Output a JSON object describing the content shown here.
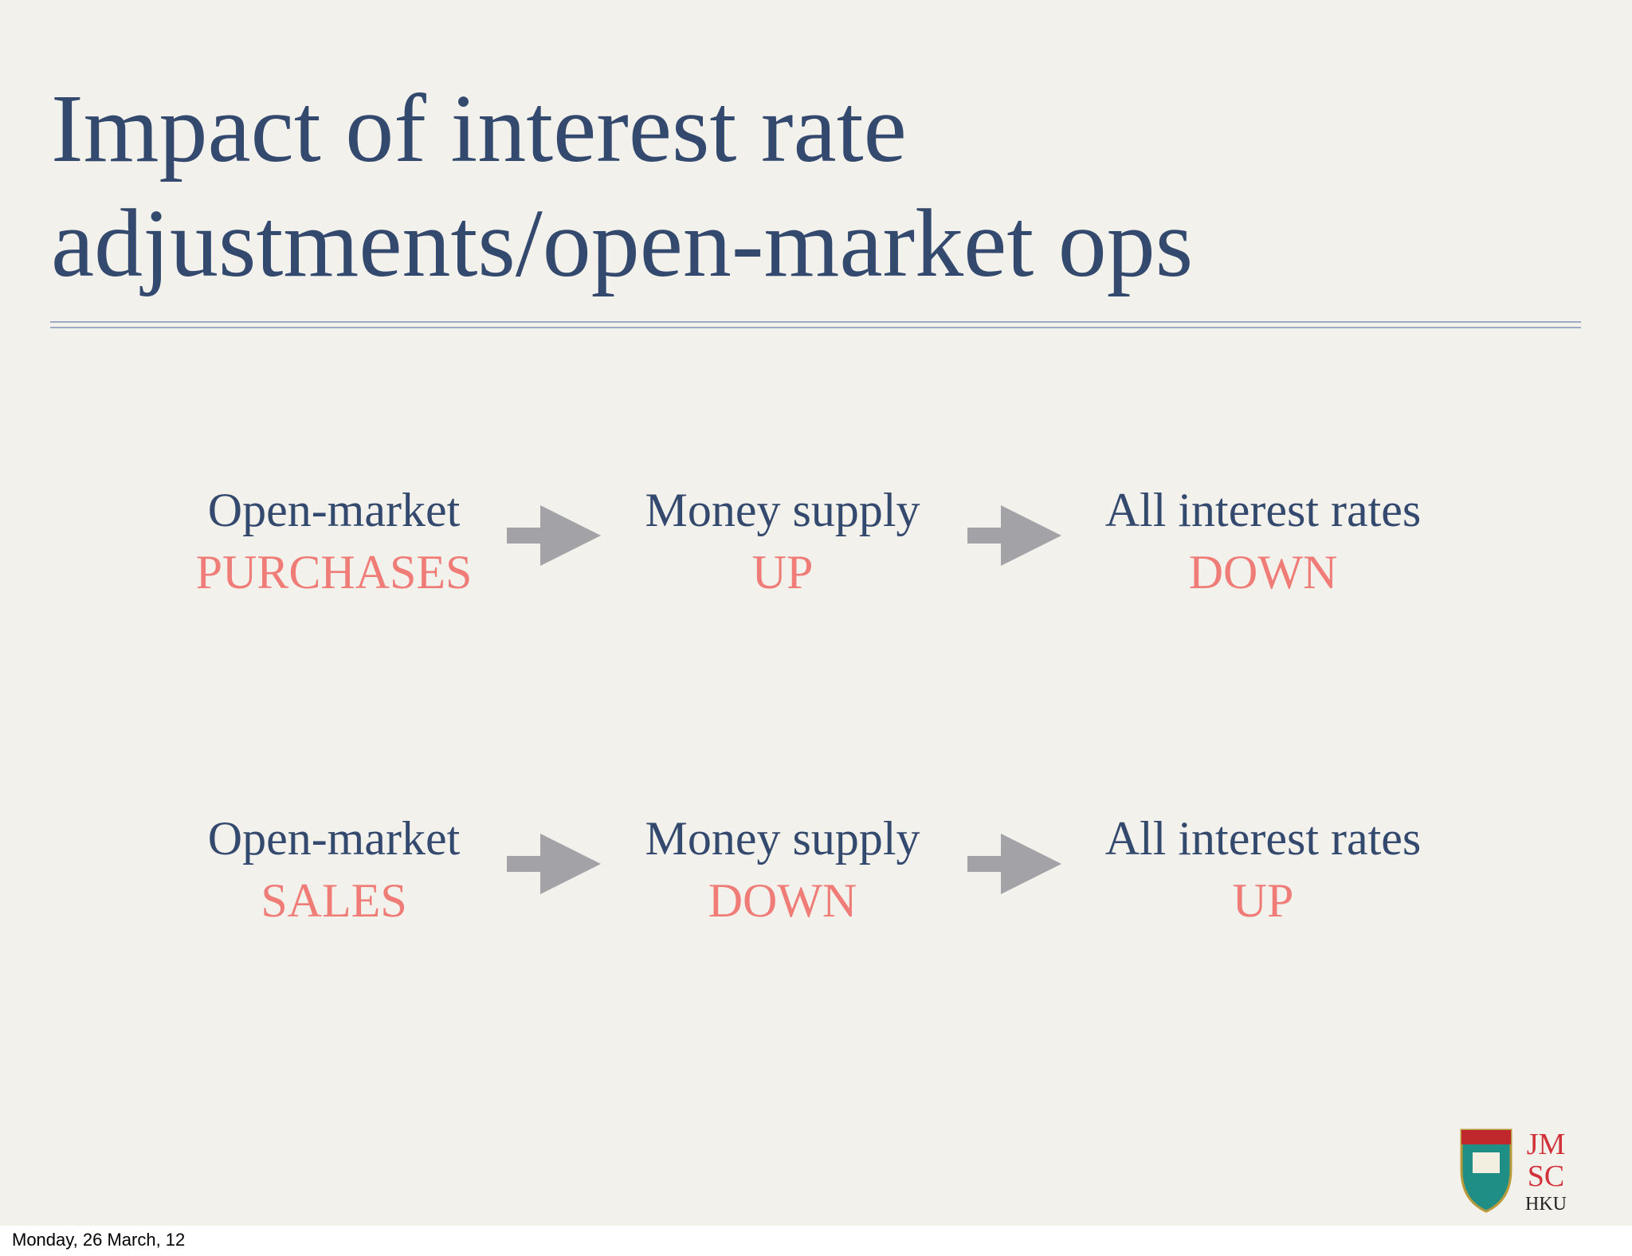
{
  "slide": {
    "title": [
      "Impact of interest rate",
      "adjustments/open-market ops"
    ],
    "rows": [
      {
        "nodes": [
          {
            "top": "Open-market",
            "bottom": "PURCHASES"
          },
          {
            "top": "Money supply",
            "bottom": "UP"
          },
          {
            "top": "All interest rates",
            "bottom": "DOWN"
          }
        ]
      },
      {
        "nodes": [
          {
            "top": "Open-market",
            "bottom": "SALES"
          },
          {
            "top": "Money supply",
            "bottom": "DOWN"
          },
          {
            "top": "All interest rates",
            "bottom": "UP"
          }
        ]
      }
    ],
    "logo": [
      "JM",
      "SC",
      "HKU"
    ]
  },
  "footer": {
    "date": "Monday, 26 March, 12"
  }
}
